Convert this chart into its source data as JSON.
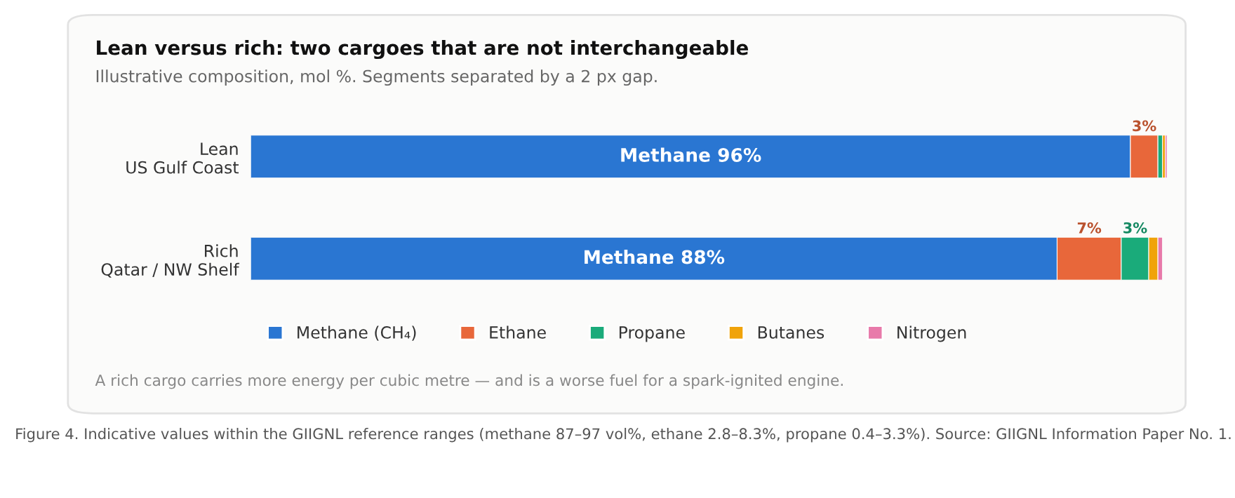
{
  "chart_data": {
    "type": "bar",
    "orientation": "horizontal",
    "stacked": true,
    "title": "Lean versus rich: two cargoes that are not interchangeable",
    "subtitle": "Illustrative composition, mol %. Segments separated by a 2 px gap.",
    "categories": [
      "Lean\nUS Gulf Coast",
      "Rich\nQatar / NW Shelf"
    ],
    "series": [
      {
        "name": "Methane (CH₄)",
        "color": "#2a76d2",
        "values": [
          96,
          88
        ],
        "value_labels": [
          "Methane 96%",
          "Methane 88%"
        ]
      },
      {
        "name": "Ethane",
        "color": "#e8673a",
        "values": [
          3,
          7
        ],
        "value_labels": [
          "3%",
          "7%"
        ]
      },
      {
        "name": "Propane",
        "color": "#1aab7a",
        "values": [
          0.5,
          3
        ],
        "value_labels": [
          null,
          "3%"
        ]
      },
      {
        "name": "Butanes",
        "color": "#f0a30a",
        "values": [
          0.3,
          1
        ]
      },
      {
        "name": "Nitrogen",
        "color": "#e87aaa",
        "values": [
          0.2,
          0.5
        ]
      }
    ],
    "xlim": [
      0,
      100
    ],
    "tick_labels": "y",
    "grid": false,
    "legend": "bottom",
    "annotations": [
      "A rich cargo carries more energy per cubic metre — and is a worse fuel for a spark-ignited engine.",
      "Figure 4. Indicative values within the GIIGNL reference ranges (methane 87–97 vol%, ethane 2.8–8.3%, propane 0.4–3.3%). Source: GIIGNL Information Paper No. 1."
    ]
  }
}
